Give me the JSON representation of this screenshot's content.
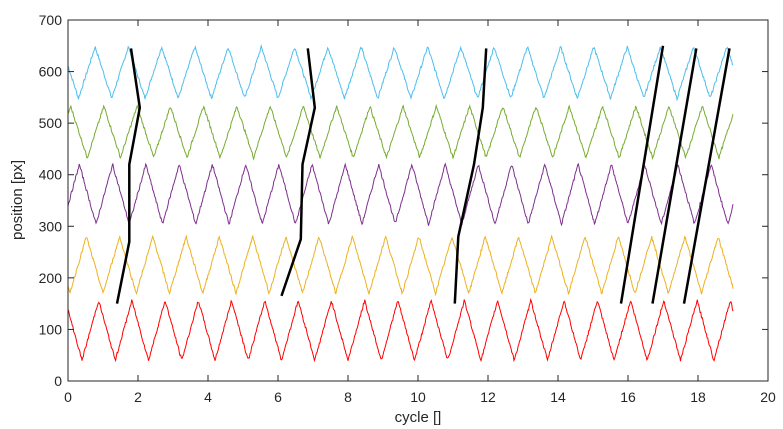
{
  "chart_data": {
    "type": "line",
    "title": "",
    "xlabel": "cycle []",
    "ylabel": "position [px]",
    "xlim": [
      0,
      20
    ],
    "ylim": [
      0,
      700
    ],
    "xticks": [
      0,
      2,
      4,
      6,
      8,
      10,
      12,
      14,
      16,
      18,
      20
    ],
    "yticks": [
      0,
      100,
      200,
      300,
      400,
      500,
      600,
      700
    ],
    "grid": false,
    "legend": "none",
    "x_range": [
      0,
      19
    ],
    "series": [
      {
        "color": "#4dbeee",
        "center": 598,
        "amplitude": 50,
        "period": 0.95,
        "phase": 0.65
      },
      {
        "color": "#77ac30",
        "center": 483,
        "amplitude": 50,
        "period": 0.95,
        "phase": 0.4
      },
      {
        "color": "#7e2f8e",
        "center": 362,
        "amplitude": 58,
        "period": 0.95,
        "phase": 0.15
      },
      {
        "color": "#edb120",
        "center": 225,
        "amplitude": 55,
        "period": 0.95,
        "phase": 0.9
      },
      {
        "color": "#ff0000",
        "center": 98,
        "amplitude": 58,
        "period": 0.95,
        "phase": 0.55
      }
    ],
    "annotations": {
      "color": "#000000",
      "polylines": [
        [
          [
            1.4,
            150
          ],
          [
            1.75,
            270
          ],
          [
            1.75,
            420
          ],
          [
            2.05,
            530
          ],
          [
            1.8,
            645
          ]
        ],
        [
          [
            6.1,
            165
          ],
          [
            6.65,
            275
          ],
          [
            6.7,
            420
          ],
          [
            7.05,
            530
          ],
          [
            6.85,
            645
          ]
        ],
        [
          [
            11.05,
            150
          ],
          [
            11.15,
            280
          ],
          [
            11.6,
            420
          ],
          [
            11.85,
            530
          ],
          [
            11.95,
            645
          ]
        ],
        [
          [
            15.8,
            150
          ],
          [
            17.0,
            650
          ]
        ],
        [
          [
            16.7,
            150
          ],
          [
            17.95,
            645
          ]
        ],
        [
          [
            17.6,
            150
          ],
          [
            18.9,
            645
          ]
        ]
      ]
    }
  }
}
